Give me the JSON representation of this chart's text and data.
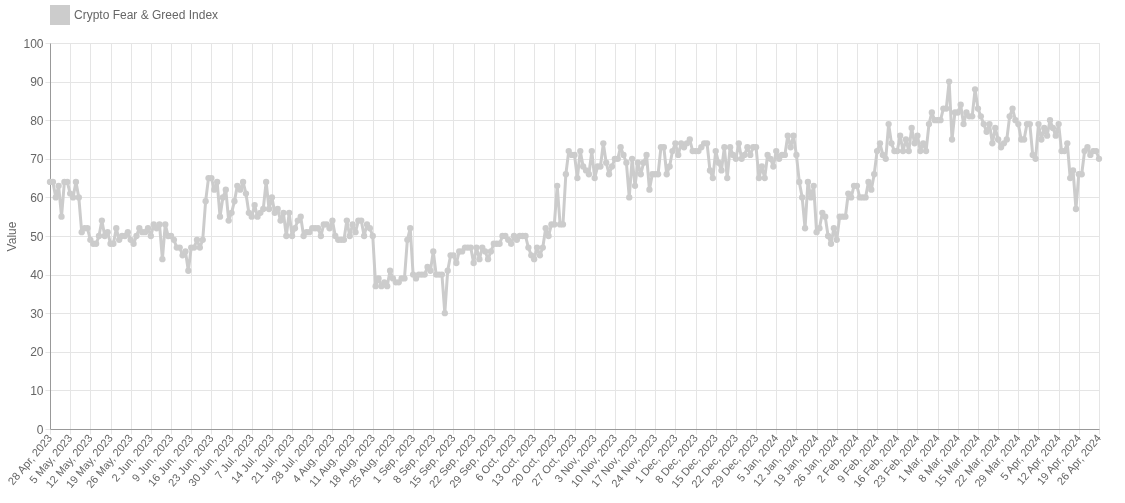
{
  "chart_data": {
    "type": "line",
    "ylabel": "Value",
    "legend": "top",
    "grid": true,
    "marker": "circle",
    "line_style": "solid",
    "xlim": [
      "2023-04-28",
      "2024-04-26"
    ],
    "ylim": [
      0,
      100
    ],
    "yticks": [
      0,
      10,
      20,
      30,
      40,
      50,
      60,
      70,
      80,
      90,
      100
    ],
    "xticks": [
      {
        "value": "2023-04-28",
        "label": "28 Apr, 2023"
      },
      {
        "value": "2023-05-05",
        "label": "5 May, 2023"
      },
      {
        "value": "2023-05-12",
        "label": "12 May, 2023"
      },
      {
        "value": "2023-05-19",
        "label": "19 May, 2023"
      },
      {
        "value": "2023-05-26",
        "label": "26 May, 2023"
      },
      {
        "value": "2023-06-02",
        "label": "2 Jun, 2023"
      },
      {
        "value": "2023-06-09",
        "label": "9 Jun, 2023"
      },
      {
        "value": "2023-06-16",
        "label": "16 Jun, 2023"
      },
      {
        "value": "2023-06-23",
        "label": "23 Jun, 2023"
      },
      {
        "value": "2023-06-30",
        "label": "30 Jun, 2023"
      },
      {
        "value": "2023-07-07",
        "label": "7 Jul, 2023"
      },
      {
        "value": "2023-07-14",
        "label": "14 Jul, 2023"
      },
      {
        "value": "2023-07-21",
        "label": "21 Jul, 2023"
      },
      {
        "value": "2023-07-28",
        "label": "28 Jul, 2023"
      },
      {
        "value": "2023-08-04",
        "label": "4 Aug, 2023"
      },
      {
        "value": "2023-08-11",
        "label": "11 Aug, 2023"
      },
      {
        "value": "2023-08-18",
        "label": "18 Aug, 2023"
      },
      {
        "value": "2023-08-25",
        "label": "25 Aug, 2023"
      },
      {
        "value": "2023-09-01",
        "label": "1 Sep, 2023"
      },
      {
        "value": "2023-09-08",
        "label": "8 Sep, 2023"
      },
      {
        "value": "2023-09-15",
        "label": "15 Sep, 2023"
      },
      {
        "value": "2023-09-22",
        "label": "22 Sep, 2023"
      },
      {
        "value": "2023-09-29",
        "label": "29 Sep, 2023"
      },
      {
        "value": "2023-10-06",
        "label": "6 Oct, 2023"
      },
      {
        "value": "2023-10-13",
        "label": "13 Oct, 2023"
      },
      {
        "value": "2023-10-20",
        "label": "20 Oct, 2023"
      },
      {
        "value": "2023-10-27",
        "label": "27 Oct, 2023"
      },
      {
        "value": "2023-11-03",
        "label": "3 Nov, 2023"
      },
      {
        "value": "2023-11-10",
        "label": "10 Nov, 2023"
      },
      {
        "value": "2023-11-17",
        "label": "17 Nov, 2023"
      },
      {
        "value": "2023-11-24",
        "label": "24 Nov, 2023"
      },
      {
        "value": "2023-12-01",
        "label": "1 Dec, 2023"
      },
      {
        "value": "2023-12-08",
        "label": "8 Dec, 2023"
      },
      {
        "value": "2023-12-15",
        "label": "15 Dec, 2023"
      },
      {
        "value": "2023-12-22",
        "label": "22 Dec, 2023"
      },
      {
        "value": "2023-12-29",
        "label": "29 Dec, 2023"
      },
      {
        "value": "2024-01-05",
        "label": "5 Jan, 2024"
      },
      {
        "value": "2024-01-12",
        "label": "12 Jan, 2024"
      },
      {
        "value": "2024-01-19",
        "label": "19 Jan, 2024"
      },
      {
        "value": "2024-01-26",
        "label": "26 Jan, 2024"
      },
      {
        "value": "2024-02-02",
        "label": "2 Feb, 2024"
      },
      {
        "value": "2024-02-09",
        "label": "9 Feb, 2024"
      },
      {
        "value": "2024-02-16",
        "label": "16 Feb, 2024"
      },
      {
        "value": "2024-02-23",
        "label": "23 Feb, 2024"
      },
      {
        "value": "2024-03-01",
        "label": "1 Mar, 2024"
      },
      {
        "value": "2024-03-08",
        "label": "8 Mar, 2024"
      },
      {
        "value": "2024-03-15",
        "label": "15 Mar, 2024"
      },
      {
        "value": "2024-03-22",
        "label": "22 Mar, 2024"
      },
      {
        "value": "2024-03-29",
        "label": "29 Mar, 2024"
      },
      {
        "value": "2024-04-05",
        "label": "5 Apr, 2024"
      },
      {
        "value": "2024-04-12",
        "label": "12 Apr, 2024"
      },
      {
        "value": "2024-04-19",
        "label": "19 Apr, 2024"
      },
      {
        "value": "2024-04-26",
        "label": "26 Apr, 2024"
      }
    ],
    "x": [
      "2023-04-28",
      "2023-04-29",
      "2023-04-30",
      "2023-05-01",
      "2023-05-02",
      "2023-05-03",
      "2023-05-04",
      "2023-05-05",
      "2023-05-06",
      "2023-05-07",
      "2023-05-08",
      "2023-05-09",
      "2023-05-10",
      "2023-05-11",
      "2023-05-12",
      "2023-05-13",
      "2023-05-14",
      "2023-05-15",
      "2023-05-16",
      "2023-05-17",
      "2023-05-18",
      "2023-05-19",
      "2023-05-20",
      "2023-05-21",
      "2023-05-22",
      "2023-05-23",
      "2023-05-24",
      "2023-05-25",
      "2023-05-26",
      "2023-05-27",
      "2023-05-28",
      "2023-05-29",
      "2023-05-30",
      "2023-05-31",
      "2023-06-01",
      "2023-06-02",
      "2023-06-03",
      "2023-06-04",
      "2023-06-05",
      "2023-06-06",
      "2023-06-07",
      "2023-06-08",
      "2023-06-09",
      "2023-06-10",
      "2023-06-11",
      "2023-06-12",
      "2023-06-13",
      "2023-06-14",
      "2023-06-15",
      "2023-06-16",
      "2023-06-17",
      "2023-06-18",
      "2023-06-19",
      "2023-06-20",
      "2023-06-21",
      "2023-06-22",
      "2023-06-23",
      "2023-06-24",
      "2023-06-25",
      "2023-06-26",
      "2023-06-27",
      "2023-06-28",
      "2023-06-29",
      "2023-06-30",
      "2023-07-01",
      "2023-07-02",
      "2023-07-03",
      "2023-07-04",
      "2023-07-05",
      "2023-07-06",
      "2023-07-07",
      "2023-07-08",
      "2023-07-09",
      "2023-07-10",
      "2023-07-11",
      "2023-07-12",
      "2023-07-13",
      "2023-07-14",
      "2023-07-15",
      "2023-07-16",
      "2023-07-17",
      "2023-07-18",
      "2023-07-19",
      "2023-07-20",
      "2023-07-21",
      "2023-07-22",
      "2023-07-23",
      "2023-07-24",
      "2023-07-25",
      "2023-07-26",
      "2023-07-27",
      "2023-07-28",
      "2023-07-29",
      "2023-07-30",
      "2023-07-31",
      "2023-08-01",
      "2023-08-02",
      "2023-08-03",
      "2023-08-04",
      "2023-08-05",
      "2023-08-06",
      "2023-08-07",
      "2023-08-08",
      "2023-08-09",
      "2023-08-10",
      "2023-08-11",
      "2023-08-12",
      "2023-08-13",
      "2023-08-14",
      "2023-08-15",
      "2023-08-16",
      "2023-08-17",
      "2023-08-18",
      "2023-08-19",
      "2023-08-20",
      "2023-08-21",
      "2023-08-22",
      "2023-08-23",
      "2023-08-24",
      "2023-08-25",
      "2023-08-26",
      "2023-08-27",
      "2023-08-28",
      "2023-08-29",
      "2023-08-30",
      "2023-08-31",
      "2023-09-01",
      "2023-09-02",
      "2023-09-03",
      "2023-09-04",
      "2023-09-05",
      "2023-09-06",
      "2023-09-07",
      "2023-09-08",
      "2023-09-09",
      "2023-09-10",
      "2023-09-11",
      "2023-09-12",
      "2023-09-13",
      "2023-09-14",
      "2023-09-15",
      "2023-09-16",
      "2023-09-17",
      "2023-09-18",
      "2023-09-19",
      "2023-09-20",
      "2023-09-21",
      "2023-09-22",
      "2023-09-23",
      "2023-09-24",
      "2023-09-25",
      "2023-09-26",
      "2023-09-27",
      "2023-09-28",
      "2023-09-29",
      "2023-09-30",
      "2023-10-01",
      "2023-10-02",
      "2023-10-03",
      "2023-10-04",
      "2023-10-05",
      "2023-10-06",
      "2023-10-07",
      "2023-10-08",
      "2023-10-09",
      "2023-10-10",
      "2023-10-11",
      "2023-10-12",
      "2023-10-13",
      "2023-10-14",
      "2023-10-15",
      "2023-10-16",
      "2023-10-17",
      "2023-10-18",
      "2023-10-19",
      "2023-10-20",
      "2023-10-21",
      "2023-10-22",
      "2023-10-23",
      "2023-10-24",
      "2023-10-25",
      "2023-10-26",
      "2023-10-27",
      "2023-10-28",
      "2023-10-29",
      "2023-10-30",
      "2023-10-31",
      "2023-11-01",
      "2023-11-02",
      "2023-11-03",
      "2023-11-04",
      "2023-11-05",
      "2023-11-06",
      "2023-11-07",
      "2023-11-08",
      "2023-11-09",
      "2023-11-10",
      "2023-11-11",
      "2023-11-12",
      "2023-11-13",
      "2023-11-14",
      "2023-11-15",
      "2023-11-16",
      "2023-11-17",
      "2023-11-18",
      "2023-11-19",
      "2023-11-20",
      "2023-11-21",
      "2023-11-22",
      "2023-11-23",
      "2023-11-24",
      "2023-11-25",
      "2023-11-26",
      "2023-11-27",
      "2023-11-28",
      "2023-11-29",
      "2023-11-30",
      "2023-12-01",
      "2023-12-02",
      "2023-12-03",
      "2023-12-04",
      "2023-12-05",
      "2023-12-06",
      "2023-12-07",
      "2023-12-08",
      "2023-12-09",
      "2023-12-10",
      "2023-12-11",
      "2023-12-12",
      "2023-12-13",
      "2023-12-14",
      "2023-12-15",
      "2023-12-16",
      "2023-12-17",
      "2023-12-18",
      "2023-12-19",
      "2023-12-20",
      "2023-12-21",
      "2023-12-22",
      "2023-12-23",
      "2023-12-24",
      "2023-12-25",
      "2023-12-26",
      "2023-12-27",
      "2023-12-28",
      "2023-12-29",
      "2023-12-30",
      "2023-12-31",
      "2024-01-01",
      "2024-01-02",
      "2024-01-03",
      "2024-01-04",
      "2024-01-05",
      "2024-01-06",
      "2024-01-07",
      "2024-01-08",
      "2024-01-09",
      "2024-01-10",
      "2024-01-11",
      "2024-01-12",
      "2024-01-13",
      "2024-01-14",
      "2024-01-15",
      "2024-01-16",
      "2024-01-17",
      "2024-01-18",
      "2024-01-19",
      "2024-01-20",
      "2024-01-21",
      "2024-01-22",
      "2024-01-23",
      "2024-01-24",
      "2024-01-25",
      "2024-01-26",
      "2024-01-27",
      "2024-01-28",
      "2024-01-29",
      "2024-01-30",
      "2024-01-31",
      "2024-02-01",
      "2024-02-02",
      "2024-02-03",
      "2024-02-04",
      "2024-02-05",
      "2024-02-06",
      "2024-02-07",
      "2024-02-08",
      "2024-02-09",
      "2024-02-10",
      "2024-02-11",
      "2024-02-12",
      "2024-02-13",
      "2024-02-14",
      "2024-02-15",
      "2024-02-16",
      "2024-02-17",
      "2024-02-18",
      "2024-02-19",
      "2024-02-20",
      "2024-02-21",
      "2024-02-22",
      "2024-02-23",
      "2024-02-24",
      "2024-02-25",
      "2024-02-26",
      "2024-02-27",
      "2024-02-28",
      "2024-02-29",
      "2024-03-01",
      "2024-03-02",
      "2024-03-03",
      "2024-03-04",
      "2024-03-05",
      "2024-03-06",
      "2024-03-07",
      "2024-03-08",
      "2024-03-09",
      "2024-03-10",
      "2024-03-11",
      "2024-03-12",
      "2024-03-13",
      "2024-03-14",
      "2024-03-15",
      "2024-03-16",
      "2024-03-17",
      "2024-03-18",
      "2024-03-19",
      "2024-03-20",
      "2024-03-21",
      "2024-03-22",
      "2024-03-23",
      "2024-03-24",
      "2024-03-25",
      "2024-03-26",
      "2024-03-27",
      "2024-03-28",
      "2024-03-29",
      "2024-03-30",
      "2024-03-31",
      "2024-04-01",
      "2024-04-02",
      "2024-04-03",
      "2024-04-04",
      "2024-04-05",
      "2024-04-06",
      "2024-04-07",
      "2024-04-08",
      "2024-04-09",
      "2024-04-10",
      "2024-04-11",
      "2024-04-12",
      "2024-04-13",
      "2024-04-14",
      "2024-04-15",
      "2024-04-16",
      "2024-04-17",
      "2024-04-18",
      "2024-04-19",
      "2024-04-20",
      "2024-04-21",
      "2024-04-22",
      "2024-04-23",
      "2024-04-24",
      "2024-04-25",
      "2024-04-26"
    ],
    "series": [
      {
        "name": "Crypto Fear & Greed Index",
        "color": "#cccccc",
        "values": [
          64,
          64,
          60,
          63,
          55,
          64,
          64,
          61,
          60,
          64,
          60,
          51,
          52,
          52,
          49,
          48,
          48,
          50,
          54,
          50,
          51,
          48,
          48,
          52,
          49,
          50,
          50,
          51,
          49,
          48,
          50,
          52,
          51,
          51,
          52,
          50,
          53,
          52,
          53,
          44,
          53,
          50,
          50,
          49,
          47,
          47,
          45,
          46,
          41,
          47,
          47,
          49,
          47,
          49,
          59,
          65,
          65,
          62,
          64,
          55,
          60,
          62,
          54,
          56,
          59,
          63,
          62,
          64,
          61,
          56,
          55,
          58,
          55,
          56,
          57,
          64,
          57,
          60,
          56,
          57,
          54,
          56,
          50,
          56,
          50,
          52,
          54,
          55,
          50,
          51,
          51,
          52,
          52,
          52,
          50,
          53,
          53,
          52,
          54,
          50,
          49,
          49,
          49,
          54,
          50,
          53,
          51,
          54,
          54,
          50,
          53,
          52,
          50,
          37,
          39,
          37,
          38,
          37,
          41,
          39,
          38,
          38,
          39,
          39,
          49,
          52,
          40,
          39,
          40,
          40,
          40,
          42,
          41,
          46,
          40,
          40,
          40,
          30,
          41,
          45,
          45,
          43,
          46,
          46,
          47,
          47,
          47,
          43,
          47,
          44,
          47,
          46,
          44,
          46,
          48,
          48,
          48,
          50,
          50,
          49,
          48,
          50,
          49,
          50,
          50,
          50,
          47,
          45,
          44,
          47,
          45,
          47,
          52,
          50,
          53,
          53,
          63,
          53,
          53,
          66,
          72,
          71,
          71,
          65,
          72,
          68,
          67,
          66,
          72,
          65,
          68,
          68,
          74,
          69,
          66,
          68,
          70,
          70,
          73,
          71,
          69,
          60,
          70,
          63,
          69,
          66,
          69,
          71,
          62,
          66,
          66,
          66,
          73,
          73,
          66,
          68,
          72,
          74,
          71,
          74,
          73,
          74,
          75,
          72,
          72,
          72,
          73,
          74,
          74,
          67,
          65,
          72,
          69,
          67,
          73,
          65,
          73,
          71,
          70,
          74,
          70,
          71,
          73,
          71,
          73,
          73,
          65,
          68,
          65,
          71,
          70,
          68,
          72,
          70,
          71,
          71,
          76,
          73,
          76,
          71,
          64,
          60,
          52,
          64,
          60,
          63,
          51,
          52,
          56,
          55,
          50,
          48,
          52,
          49,
          55,
          55,
          55,
          61,
          60,
          63,
          63,
          60,
          60,
          60,
          64,
          62,
          66,
          72,
          74,
          71,
          70,
          79,
          74,
          72,
          72,
          76,
          72,
          75,
          72,
          78,
          74,
          76,
          72,
          74,
          72,
          79,
          82,
          80,
          80,
          80,
          83,
          83,
          90,
          75,
          82,
          82,
          84,
          79,
          82,
          81,
          81,
          88,
          83,
          81,
          79,
          77,
          79,
          74,
          78,
          75,
          73,
          74,
          75,
          81,
          83,
          80,
          79,
          75,
          75,
          79,
          79,
          71,
          70,
          79,
          75,
          78,
          76,
          80,
          78,
          76,
          79,
          72,
          72,
          74,
          65,
          67,
          57,
          66,
          66,
          72,
          73,
          71,
          72,
          72,
          70
        ]
      }
    ]
  }
}
